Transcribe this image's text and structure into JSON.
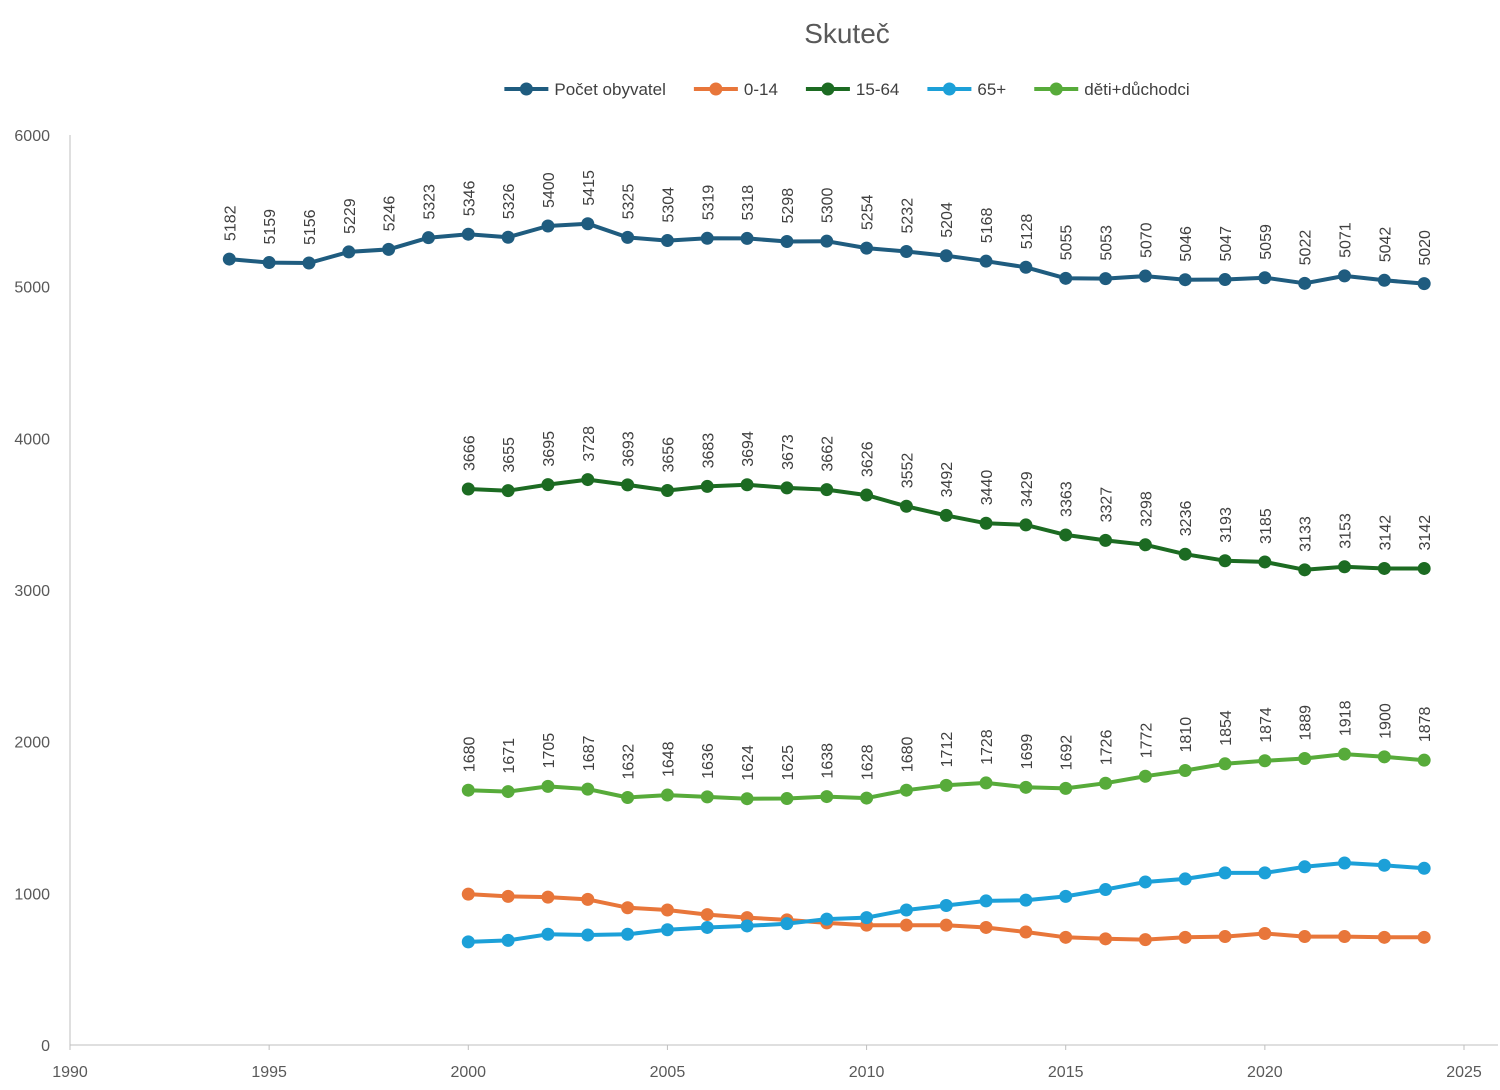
{
  "chart_data": {
    "type": "line",
    "title": "Skuteč",
    "xlim": [
      1990,
      2025
    ],
    "ylim": [
      0,
      6000
    ],
    "x_ticks": [
      1990,
      1995,
      2000,
      2005,
      2010,
      2015,
      2020,
      2025
    ],
    "y_ticks": [
      0,
      1000,
      2000,
      3000,
      4000,
      5000,
      6000
    ],
    "grid": false,
    "legend_position": "top",
    "series": [
      {
        "name": "Počet obyvatel",
        "color": "#1f5c7f",
        "show_labels": true,
        "x": [
          1994,
          1995,
          1996,
          1997,
          1998,
          1999,
          2000,
          2001,
          2002,
          2003,
          2004,
          2005,
          2006,
          2007,
          2008,
          2009,
          2010,
          2011,
          2012,
          2013,
          2014,
          2015,
          2016,
          2017,
          2018,
          2019,
          2020,
          2021,
          2022,
          2023,
          2024
        ],
        "values": [
          5182,
          5159,
          5156,
          5229,
          5246,
          5323,
          5346,
          5326,
          5400,
          5415,
          5325,
          5304,
          5319,
          5318,
          5298,
          5300,
          5254,
          5232,
          5204,
          5168,
          5128,
          5055,
          5053,
          5070,
          5046,
          5047,
          5059,
          5022,
          5071,
          5042,
          5020
        ]
      },
      {
        "name": "0-14",
        "color": "#e8763a",
        "show_labels": false,
        "x": [
          2000,
          2001,
          2002,
          2003,
          2004,
          2005,
          2006,
          2007,
          2008,
          2009,
          2010,
          2011,
          2012,
          2013,
          2014,
          2015,
          2016,
          2017,
          2018,
          2019,
          2020,
          2021,
          2022,
          2023,
          2024
        ],
        "values": [
          995,
          980,
          975,
          960,
          905,
          890,
          860,
          840,
          825,
          805,
          790,
          790,
          790,
          775,
          745,
          710,
          700,
          695,
          710,
          715,
          735,
          715,
          715,
          710,
          710
        ]
      },
      {
        "name": "15-64",
        "color": "#1c6b22",
        "show_labels": true,
        "x": [
          2000,
          2001,
          2002,
          2003,
          2004,
          2005,
          2006,
          2007,
          2008,
          2009,
          2010,
          2011,
          2012,
          2013,
          2014,
          2015,
          2016,
          2017,
          2018,
          2019,
          2020,
          2021,
          2022,
          2023,
          2024
        ],
        "values": [
          3666,
          3655,
          3695,
          3728,
          3693,
          3656,
          3683,
          3694,
          3673,
          3662,
          3626,
          3552,
          3492,
          3440,
          3429,
          3363,
          3327,
          3298,
          3236,
          3193,
          3185,
          3133,
          3153,
          3142,
          3142
        ]
      },
      {
        "name": "65+",
        "color": "#1ca0d8",
        "show_labels": false,
        "x": [
          2000,
          2001,
          2002,
          2003,
          2004,
          2005,
          2006,
          2007,
          2008,
          2009,
          2010,
          2011,
          2012,
          2013,
          2014,
          2015,
          2016,
          2017,
          2018,
          2019,
          2020,
          2021,
          2022,
          2023,
          2024
        ],
        "values": [
          680,
          690,
          730,
          725,
          730,
          760,
          775,
          785,
          800,
          830,
          840,
          890,
          920,
          950,
          955,
          980,
          1025,
          1075,
          1095,
          1135,
          1135,
          1175,
          1200,
          1185,
          1165
        ]
      },
      {
        "name": "děti+důchodci",
        "color": "#57ab3a",
        "show_labels": true,
        "x": [
          2000,
          2001,
          2002,
          2003,
          2004,
          2005,
          2006,
          2007,
          2008,
          2009,
          2010,
          2011,
          2012,
          2013,
          2014,
          2015,
          2016,
          2017,
          2018,
          2019,
          2020,
          2021,
          2022,
          2023,
          2024
        ],
        "values": [
          1680,
          1671,
          1705,
          1687,
          1632,
          1648,
          1636,
          1624,
          1625,
          1638,
          1628,
          1680,
          1712,
          1728,
          1699,
          1692,
          1726,
          1772,
          1810,
          1854,
          1874,
          1889,
          1918,
          1900,
          1878
        ]
      }
    ]
  }
}
